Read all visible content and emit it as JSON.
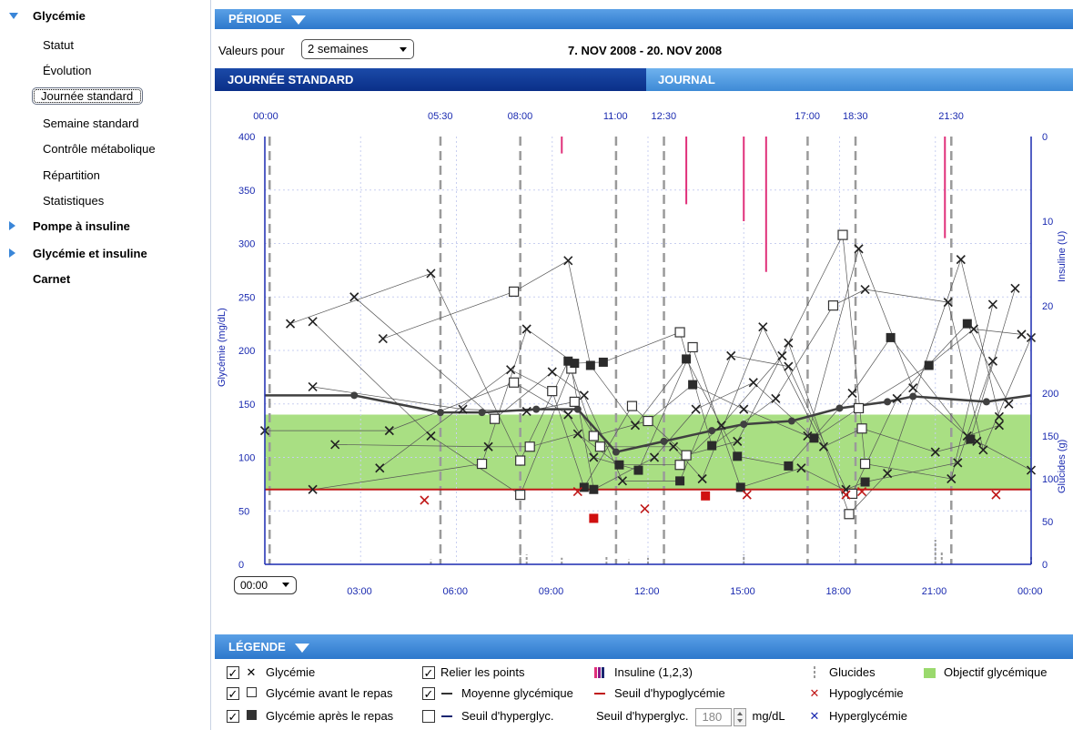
{
  "sidebar": {
    "groups": [
      {
        "label": "Glycémie",
        "expanded": true
      },
      {
        "label": "Pompe à insuline",
        "expanded": false
      },
      {
        "label": "Glycémie et insuline",
        "expanded": false
      },
      {
        "label": "Carnet",
        "expanded": false
      }
    ],
    "sub_items": [
      "Statut",
      "Évolution",
      "Journée standard",
      "Semaine standard",
      "Contrôle métabolique",
      "Répartition",
      "Statistiques"
    ],
    "selected": "Journée standard"
  },
  "period": {
    "title": "PÉRIODE",
    "values_label": "Valeurs pour",
    "range_value": "2 semaines",
    "date_range": "7. NOV 2008 - 20. NOV 2008"
  },
  "tabs": {
    "standard": "JOURNÉE STANDARD",
    "journal": "JOURNAL"
  },
  "chart": {
    "time_select": "00:00",
    "top_times": [
      "00:00",
      "05:30",
      "08:00",
      "11:00",
      "12:30",
      "17:00",
      "18:30",
      "21:30"
    ],
    "colors": {
      "target_band": "#9ad96d",
      "hypo_line": "#c01818",
      "insulin": "#e0307a",
      "mean_line": "#404040",
      "grid": "#c8cff0",
      "axis": "#1a2ab0"
    }
  },
  "chart_data": {
    "type": "scatter",
    "xlabel": "",
    "ylabel": "Glycémie (mg/dL)",
    "y2label_top": "Insuline (U)",
    "y2label_bottom": "Glucides (g)",
    "xlim": [
      0,
      24
    ],
    "ylim": [
      0,
      400
    ],
    "xticks": [
      "03:00",
      "06:00",
      "09:00",
      "12:00",
      "15:00",
      "18:00",
      "21:00",
      "00:00"
    ],
    "yticks": [
      0,
      50,
      100,
      150,
      200,
      250,
      300,
      350,
      400
    ],
    "insulin_ticks": [
      0,
      10,
      20
    ],
    "carb_ticks": [
      50,
      100,
      150,
      200
    ],
    "target_range": [
      70,
      140
    ],
    "hypo_threshold": 70,
    "vertical_markers_hours": [
      0.15,
      5.5,
      8.0,
      11.0,
      12.5,
      17.0,
      18.5,
      21.5
    ],
    "mean_curve": [
      [
        0,
        158
      ],
      [
        2.8,
        158
      ],
      [
        5.5,
        142
      ],
      [
        6.8,
        142
      ],
      [
        8.5,
        145
      ],
      [
        9.8,
        145
      ],
      [
        11.0,
        105
      ],
      [
        12.5,
        115
      ],
      [
        14.0,
        125
      ],
      [
        15.0,
        131
      ],
      [
        16.5,
        134
      ],
      [
        18.0,
        146
      ],
      [
        19.5,
        152
      ],
      [
        20.3,
        157
      ],
      [
        22.6,
        152
      ],
      [
        24.0,
        158
      ]
    ],
    "series": [
      {
        "name": "Glycémie",
        "marker": "x",
        "points": [
          [
            0,
            125
          ],
          [
            0.8,
            225
          ],
          [
            1.5,
            227
          ],
          [
            1.5,
            166
          ],
          [
            1.5,
            70
          ],
          [
            2.2,
            112
          ],
          [
            2.8,
            250
          ],
          [
            3.6,
            90
          ],
          [
            3.7,
            211
          ],
          [
            3.9,
            125
          ],
          [
            5.2,
            272
          ],
          [
            5.2,
            120
          ],
          [
            6.2,
            145
          ],
          [
            7.0,
            110
          ],
          [
            7.7,
            182
          ],
          [
            8.2,
            143
          ],
          [
            8.2,
            220
          ],
          [
            9.0,
            180
          ],
          [
            9.5,
            284
          ],
          [
            9.5,
            140
          ],
          [
            9.8,
            122
          ],
          [
            10.0,
            158
          ],
          [
            10.3,
            100
          ],
          [
            11.2,
            78
          ],
          [
            11.6,
            130
          ],
          [
            12.2,
            100
          ],
          [
            12.8,
            110
          ],
          [
            13.5,
            145
          ],
          [
            13.7,
            80
          ],
          [
            14.3,
            130
          ],
          [
            14.6,
            195
          ],
          [
            14.8,
            115
          ],
          [
            15.0,
            145
          ],
          [
            15.3,
            170
          ],
          [
            15.6,
            222
          ],
          [
            16.0,
            155
          ],
          [
            16.2,
            195
          ],
          [
            16.4,
            185
          ],
          [
            16.4,
            207
          ],
          [
            16.8,
            90
          ],
          [
            17.0,
            120
          ],
          [
            17.5,
            110
          ],
          [
            18.2,
            70
          ],
          [
            18.4,
            160
          ],
          [
            18.6,
            295
          ],
          [
            18.8,
            257
          ],
          [
            19.5,
            85
          ],
          [
            19.8,
            155
          ],
          [
            20.3,
            165
          ],
          [
            21.0,
            105
          ],
          [
            21.4,
            245
          ],
          [
            21.5,
            80
          ],
          [
            21.7,
            95
          ],
          [
            21.8,
            285
          ],
          [
            22.0,
            120
          ],
          [
            22.2,
            220
          ],
          [
            22.3,
            115
          ],
          [
            22.5,
            107
          ],
          [
            22.8,
            243
          ],
          [
            22.8,
            190
          ],
          [
            23.0,
            138
          ],
          [
            23.0,
            130
          ],
          [
            23.3,
            150
          ],
          [
            23.5,
            258
          ],
          [
            23.7,
            215
          ],
          [
            24.0,
            88
          ],
          [
            24.0,
            212
          ]
        ]
      },
      {
        "name": "Glycémie avant le repas",
        "marker": "open-square",
        "points": [
          [
            6.8,
            94
          ],
          [
            7.2,
            136
          ],
          [
            7.8,
            255
          ],
          [
            7.8,
            170
          ],
          [
            8.0,
            97
          ],
          [
            8.0,
            65
          ],
          [
            8.3,
            110
          ],
          [
            9.0,
            162
          ],
          [
            9.6,
            183
          ],
          [
            9.7,
            152
          ],
          [
            10.3,
            120
          ],
          [
            10.5,
            110
          ],
          [
            11.5,
            148
          ],
          [
            12.0,
            134
          ],
          [
            13.0,
            217
          ],
          [
            13.0,
            93
          ],
          [
            13.2,
            102
          ],
          [
            13.4,
            203
          ],
          [
            17.8,
            242
          ],
          [
            18.1,
            308
          ],
          [
            18.3,
            47
          ],
          [
            18.4,
            66
          ],
          [
            18.6,
            146
          ],
          [
            18.7,
            127
          ],
          [
            18.8,
            94
          ]
        ]
      },
      {
        "name": "Glycémie après le repas",
        "marker": "filled-square",
        "points": [
          [
            9.5,
            190
          ],
          [
            9.7,
            188
          ],
          [
            10.0,
            72
          ],
          [
            10.2,
            186
          ],
          [
            10.3,
            70
          ],
          [
            10.6,
            189
          ],
          [
            11.1,
            93
          ],
          [
            11.7,
            88
          ],
          [
            13.0,
            78
          ],
          [
            13.2,
            192
          ],
          [
            13.4,
            168
          ],
          [
            14.0,
            111
          ],
          [
            14.8,
            101
          ],
          [
            14.9,
            72
          ],
          [
            16.4,
            92
          ],
          [
            17.2,
            118
          ],
          [
            18.8,
            77
          ],
          [
            19.6,
            212
          ],
          [
            20.8,
            186
          ],
          [
            22.0,
            225
          ],
          [
            22.1,
            117
          ]
        ]
      },
      {
        "name": "Hypoglycémie",
        "marker": "x",
        "points": [
          [
            5.0,
            60
          ],
          [
            9.8,
            68
          ],
          [
            11.9,
            52
          ],
          [
            15.1,
            65
          ],
          [
            18.2,
            65
          ],
          [
            18.7,
            68
          ],
          [
            22.9,
            65
          ]
        ]
      },
      {
        "name": "Hypoglycémie (point)",
        "marker": "red-square",
        "points": [
          [
            10.3,
            43
          ],
          [
            13.8,
            64
          ]
        ]
      },
      {
        "name": "Insuline (1,2,3)",
        "marker": "bar-from-top",
        "points": [
          [
            9.3,
            2
          ],
          [
            13.2,
            8
          ],
          [
            15.0,
            10
          ],
          [
            15.7,
            16
          ],
          [
            21.3,
            12
          ]
        ]
      },
      {
        "name": "Glucides",
        "marker": "bar-from-bottom",
        "points": [
          [
            5.2,
            3
          ],
          [
            8.0,
            10
          ],
          [
            8.2,
            6
          ],
          [
            9.3,
            4
          ],
          [
            10.7,
            5
          ],
          [
            11.4,
            3
          ],
          [
            12.0,
            4
          ],
          [
            15.0,
            6
          ],
          [
            21.0,
            15
          ],
          [
            21.2,
            8
          ],
          [
            24.0,
            5
          ]
        ]
      }
    ]
  },
  "legend": {
    "title": "LÉGENDE",
    "items": {
      "glycemie": "Glycémie",
      "avant": "Glycémie avant le repas",
      "apres": "Glycémie après le repas",
      "relier": "Relier les points",
      "moyenne": "Moyenne glycémique",
      "seuil_hyper_cb": "Seuil d'hyperglyc.",
      "insuline": "Insuline (1,2,3)",
      "seuil_hypo": "Seuil d'hypoglycémie",
      "seuil_hyper_label": "Seuil d'hyperglyc.",
      "hyper_value": "180",
      "unit": "mg/dL",
      "glucides": "Glucides",
      "hypo": "Hypoglycémie",
      "hyper": "Hyperglycémie",
      "objectif": "Objectif glycémique"
    }
  }
}
